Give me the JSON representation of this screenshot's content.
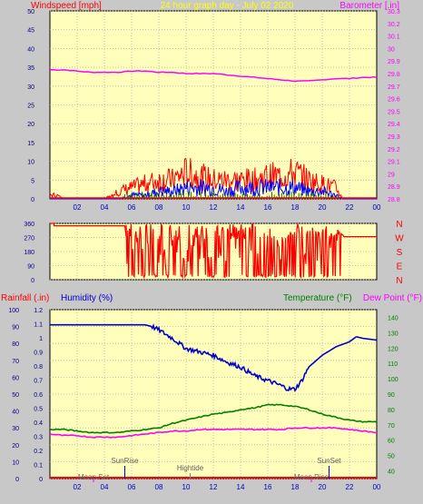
{
  "chart_data": [
    {
      "type": "line",
      "title": "24 hour graph day - July 02 2020",
      "ylabel_left": "Windspeed [mph]",
      "ylabel_right": "Barometer [.in]",
      "xticks": [
        "02",
        "04",
        "06",
        "08",
        "10",
        "12",
        "14",
        "16",
        "18",
        "20",
        "22",
        "00"
      ],
      "ylim_left": [
        0,
        50
      ],
      "yticks_left": [
        "0",
        "5",
        "10",
        "15",
        "20",
        "25",
        "30",
        "35",
        "40",
        "45",
        "50"
      ],
      "ylim_right": [
        28.8,
        30.3
      ],
      "yticks_right": [
        "28.8",
        "28.9",
        "29",
        "29.1",
        "29.2",
        "29.3",
        "29.4",
        "29.5",
        "29.6",
        "29.7",
        "29.8",
        "29.9",
        "30",
        "30.1",
        "30.2",
        "30.3"
      ],
      "grid": true,
      "colors": {
        "gust": "#ff0000",
        "wind": "#0000ff",
        "wind_secondary": "#008000",
        "barometer": "#ff00ff"
      },
      "series": [
        {
          "axis": "right",
          "x": [
            0,
            1,
            2,
            3,
            4,
            5,
            6,
            7,
            8,
            9,
            10,
            11,
            12,
            13,
            14,
            15,
            16,
            17,
            18,
            19,
            20,
            21,
            22,
            23,
            24
          ],
          "values": [
            29.83,
            29.83,
            29.82,
            29.81,
            29.81,
            29.81,
            29.82,
            29.82,
            29.81,
            29.81,
            29.8,
            29.8,
            29.8,
            29.79,
            29.78,
            29.77,
            29.76,
            29.75,
            29.74,
            29.74,
            29.75,
            29.76,
            29.76,
            29.77,
            29.77
          ]
        },
        {
          "axis": "left",
          "x": [
            0,
            0.5,
            1,
            2,
            3,
            4,
            5,
            6,
            7,
            8,
            9,
            10,
            11,
            12,
            13,
            14,
            15,
            16,
            17,
            18,
            19,
            20,
            21,
            21.5,
            22,
            24
          ],
          "values": [
            1,
            1,
            0,
            0,
            0,
            0,
            2,
            3,
            4,
            5,
            5,
            7,
            6,
            5,
            5,
            5,
            5,
            6,
            6,
            7,
            5,
            4,
            3,
            0,
            0,
            0
          ]
        },
        {
          "axis": "left",
          "x": [
            0,
            5,
            6,
            7,
            8,
            9,
            10,
            11,
            12,
            13,
            14,
            15,
            16,
            17,
            18,
            19,
            20,
            21,
            21.5,
            22,
            24
          ],
          "values": [
            0,
            0,
            1,
            1,
            2,
            2,
            3,
            3,
            3,
            2,
            3,
            3,
            3,
            3,
            3,
            2,
            2,
            1,
            0,
            0,
            0
          ]
        }
      ]
    },
    {
      "type": "line",
      "ylabel_right": "N W S E N",
      "compass": [
        "N",
        "W",
        "S",
        "E",
        "N"
      ],
      "ylim": [
        0,
        360
      ],
      "yticks": [
        "0",
        "90",
        "180",
        "270",
        "360"
      ],
      "grid": true,
      "colors": {
        "direction": "#ff0000"
      },
      "series": [
        {
          "x": [
            0,
            0.3,
            0.3,
            5.6,
            5.6,
            24
          ],
          "values": [
            360,
            360,
            340,
            340,
            270,
            270
          ]
        }
      ]
    },
    {
      "type": "line",
      "ylabel_rainfall": "Rainfall (.in)",
      "ylabel_humidity": "Humidity (%)",
      "ylabel_temperature": "Temperature (°F)",
      "ylabel_dewpoint": "Dew Point (°F)",
      "yticks_humidity": [
        "0",
        "10",
        "20",
        "30",
        "40",
        "50",
        "60",
        "70",
        "80",
        "90",
        "100"
      ],
      "yticks_rainfall": [
        "0",
        "0.1",
        "0.2",
        "0.3",
        "0.4",
        "0.5",
        "0.6",
        "0.7",
        "0.8",
        "0.9",
        "1",
        "1.1",
        "1.2"
      ],
      "yticks_temperature": [
        "40",
        "50",
        "60",
        "70",
        "80",
        "90",
        "100",
        "110",
        "120",
        "130",
        "140"
      ],
      "ylim_humidity": [
        0,
        100
      ],
      "ylim_temperature": [
        35,
        145
      ],
      "annotations": [
        "SunRise",
        "Moon Set",
        "Hightide",
        "SunSet",
        "Moon Rise"
      ],
      "grid": true,
      "colors": {
        "humidity": "#0000cc",
        "temperature": "#008000",
        "dewpoint": "#ff00ff",
        "rainfall": "#ff0000"
      },
      "series": [
        {
          "name": "Humidity",
          "axis": "humidity",
          "x": [
            0,
            1,
            2,
            3,
            4,
            5,
            6,
            7,
            7.5,
            8,
            9,
            10,
            11,
            12,
            13,
            14,
            15,
            16,
            17,
            17.5,
            18,
            18.5,
            19,
            20,
            21,
            22,
            22.5,
            23,
            24
          ],
          "values": [
            91,
            91,
            91,
            91,
            91,
            91,
            91,
            91,
            90,
            88,
            83,
            77,
            75,
            73,
            69,
            66,
            61,
            58,
            55,
            53,
            53,
            58,
            66,
            73,
            78,
            81,
            84,
            83,
            82
          ]
        },
        {
          "name": "Temperature",
          "axis": "temperature",
          "x": [
            0,
            1,
            2,
            3,
            4,
            5,
            6,
            7,
            8,
            9,
            10,
            11,
            12,
            13,
            14,
            15,
            16,
            17,
            18,
            19,
            20,
            21,
            22,
            23,
            24
          ],
          "values": [
            67,
            67,
            66,
            65,
            65,
            65,
            66,
            67,
            68,
            71,
            73,
            75,
            77,
            78,
            80,
            81,
            83,
            83,
            82,
            80,
            77,
            75,
            73,
            72,
            72
          ]
        },
        {
          "name": "Dew Point",
          "axis": "temperature",
          "x": [
            0,
            1,
            2,
            3,
            4,
            5,
            6,
            7,
            8,
            9,
            10,
            11,
            12,
            13,
            14,
            15,
            16,
            17,
            18,
            19,
            20,
            21,
            22,
            23,
            24
          ],
          "values": [
            64,
            63,
            63,
            62,
            62,
            62,
            63,
            64,
            65,
            66,
            66,
            67,
            67,
            67,
            67,
            67,
            67,
            67,
            68,
            68,
            68,
            68,
            67,
            66,
            65
          ]
        },
        {
          "name": "Rainfall",
          "axis": "rainfall",
          "x": [
            0,
            24
          ],
          "values": [
            0,
            0
          ]
        }
      ]
    }
  ]
}
